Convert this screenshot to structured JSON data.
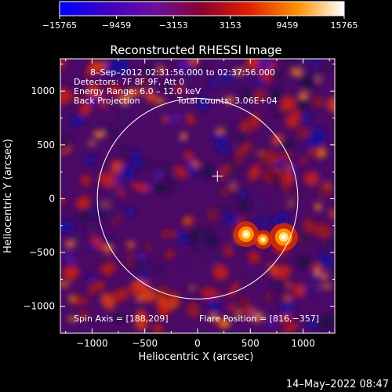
{
  "chart_data": {
    "type": "heatmap",
    "title": "Reconstructed RHESSI Image",
    "xlabel": "Heliocentric X (arcsec)",
    "ylabel": "Heliocentric Y (arcsec)",
    "xlim": [
      -1300,
      1300
    ],
    "ylim": [
      -1250,
      1300
    ],
    "x_ticks": [
      -1000,
      -500,
      0,
      500,
      1000
    ],
    "y_ticks": [
      -1000,
      -500,
      0,
      500,
      1000
    ],
    "x_tick_labels": [
      "−1000",
      "−500",
      "0",
      "500",
      "1000"
    ],
    "y_tick_labels": [
      "−1000",
      "−500",
      "0",
      "500",
      "1000"
    ],
    "colorbar": {
      "min": -15765,
      "max": 15765,
      "tick_labels": [
        "−15765",
        "−9459",
        "−3153",
        "3153",
        "9459",
        "15765"
      ],
      "colors": [
        "#0000ff",
        "#4000c0",
        "#6a10a0",
        "#8a0030",
        "#e02000",
        "#ff9000",
        "#ffffff"
      ]
    },
    "annotations": {
      "time_range": "8–Sep–2012 02:31:56.000 to 02:37:56.000",
      "detectors": "Detectors: 7F 8F 9F, Att 0",
      "energy": "Energy Range: 6.0 – 12.0 keV",
      "method": "Back Projection",
      "counts": "Total counts: 3.06E+04",
      "spin_axis": "Spin Axis = [188,209]",
      "flare_position": "Flare Position = [816,−357]"
    },
    "solar_disk": {
      "center": [
        0,
        0
      ],
      "radius": 950
    },
    "spin_axis_marker": [
      188,
      209
    ],
    "bright_sources": [
      {
        "x": 816,
        "y": -357,
        "intensity": 15765
      },
      {
        "x": 460,
        "y": -330,
        "intensity": 14000
      },
      {
        "x": 620,
        "y": -380,
        "intensity": 9000
      }
    ]
  },
  "footer": {
    "timestamp": "14–May–2022 08:47"
  }
}
